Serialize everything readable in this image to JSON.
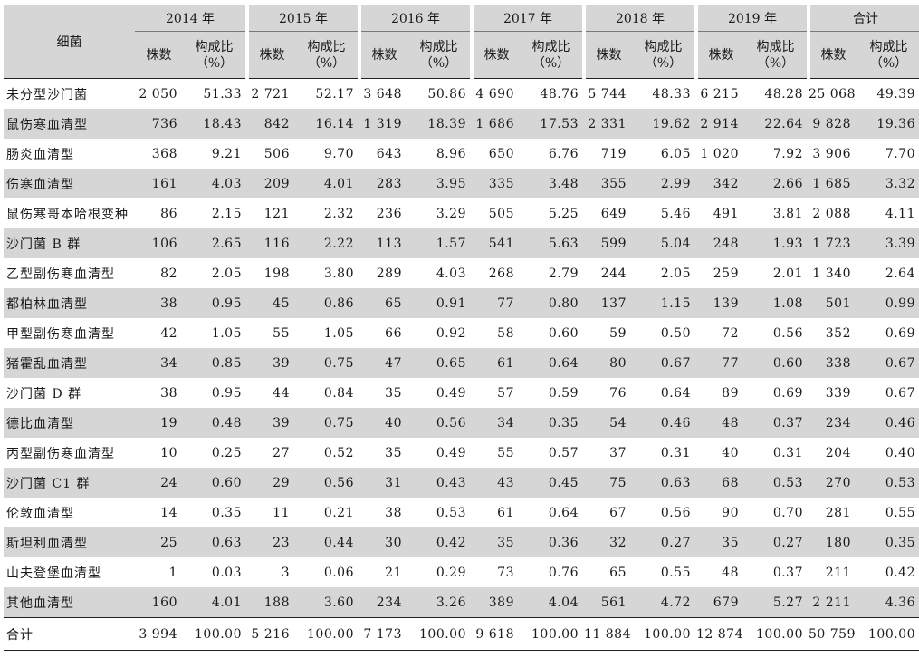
{
  "header": {
    "name_label": "细菌",
    "years": [
      "2014 年",
      "2015 年",
      "2016 年",
      "2017 年",
      "2018 年",
      "2019 年",
      "合计"
    ],
    "count_label": "株数",
    "ratio_label": "构成比",
    "ratio_unit": "（%）"
  },
  "rows": [
    {
      "name": "未分型沙门菌",
      "cells": [
        "2 050",
        "51.33",
        "2 721",
        "52.17",
        "3 648",
        "50.86",
        "4 690",
        "48.76",
        "5 744",
        "48.33",
        "6 215",
        "48.28",
        "25 068",
        "49.39"
      ]
    },
    {
      "name": "鼠伤寒血清型",
      "cells": [
        "736",
        "18.43",
        "842",
        "16.14",
        "1 319",
        "18.39",
        "1 686",
        "17.53",
        "2 331",
        "19.62",
        "2 914",
        "22.64",
        "9 828",
        "19.36"
      ]
    },
    {
      "name": "肠炎血清型",
      "cells": [
        "368",
        "9.21",
        "506",
        "9.70",
        "643",
        "8.96",
        "650",
        "6.76",
        "719",
        "6.05",
        "1 020",
        "7.92",
        "3 906",
        "7.70"
      ]
    },
    {
      "name": "伤寒血清型",
      "cells": [
        "161",
        "4.03",
        "209",
        "4.01",
        "283",
        "3.95",
        "335",
        "3.48",
        "355",
        "2.99",
        "342",
        "2.66",
        "1 685",
        "3.32"
      ]
    },
    {
      "name": "鼠伤寒哥本哈根变种",
      "cells": [
        "86",
        "2.15",
        "121",
        "2.32",
        "236",
        "3.29",
        "505",
        "5.25",
        "649",
        "5.46",
        "491",
        "3.81",
        "2 088",
        "4.11"
      ]
    },
    {
      "name": "沙门菌 B 群",
      "cells": [
        "106",
        "2.65",
        "116",
        "2.22",
        "113",
        "1.57",
        "541",
        "5.63",
        "599",
        "5.04",
        "248",
        "1.93",
        "1 723",
        "3.39"
      ]
    },
    {
      "name": "乙型副伤寒血清型",
      "cells": [
        "82",
        "2.05",
        "198",
        "3.80",
        "289",
        "4.03",
        "268",
        "2.79",
        "244",
        "2.05",
        "259",
        "2.01",
        "1 340",
        "2.64"
      ]
    },
    {
      "name": "都柏林血清型",
      "cells": [
        "38",
        "0.95",
        "45",
        "0.86",
        "65",
        "0.91",
        "77",
        "0.80",
        "137",
        "1.15",
        "139",
        "1.08",
        "501",
        "0.99"
      ]
    },
    {
      "name": "甲型副伤寒血清型",
      "cells": [
        "42",
        "1.05",
        "55",
        "1.05",
        "66",
        "0.92",
        "58",
        "0.60",
        "59",
        "0.50",
        "72",
        "0.56",
        "352",
        "0.69"
      ]
    },
    {
      "name": "猪霍乱血清型",
      "cells": [
        "34",
        "0.85",
        "39",
        "0.75",
        "47",
        "0.65",
        "61",
        "0.64",
        "80",
        "0.67",
        "77",
        "0.60",
        "338",
        "0.67"
      ]
    },
    {
      "name": "沙门菌 D 群",
      "cells": [
        "38",
        "0.95",
        "44",
        "0.84",
        "35",
        "0.49",
        "57",
        "0.59",
        "76",
        "0.64",
        "89",
        "0.69",
        "339",
        "0.67"
      ]
    },
    {
      "name": "德比血清型",
      "cells": [
        "19",
        "0.48",
        "39",
        "0.75",
        "40",
        "0.56",
        "34",
        "0.35",
        "54",
        "0.46",
        "48",
        "0.37",
        "234",
        "0.46"
      ]
    },
    {
      "name": "丙型副伤寒血清型",
      "cells": [
        "10",
        "0.25",
        "27",
        "0.52",
        "35",
        "0.49",
        "55",
        "0.57",
        "37",
        "0.31",
        "40",
        "0.31",
        "204",
        "0.40"
      ]
    },
    {
      "name": "沙门菌 C1 群",
      "cells": [
        "24",
        "0.60",
        "29",
        "0.56",
        "31",
        "0.43",
        "43",
        "0.45",
        "75",
        "0.63",
        "68",
        "0.53",
        "270",
        "0.53"
      ]
    },
    {
      "name": "伦敦血清型",
      "cells": [
        "14",
        "0.35",
        "11",
        "0.21",
        "38",
        "0.53",
        "61",
        "0.64",
        "67",
        "0.56",
        "90",
        "0.70",
        "281",
        "0.55"
      ]
    },
    {
      "name": "斯坦利血清型",
      "cells": [
        "25",
        "0.63",
        "23",
        "0.44",
        "30",
        "0.42",
        "35",
        "0.36",
        "32",
        "0.27",
        "35",
        "0.27",
        "180",
        "0.35"
      ]
    },
    {
      "name": "山夫登堡血清型",
      "cells": [
        "1",
        "0.03",
        "3",
        "0.06",
        "21",
        "0.29",
        "73",
        "0.76",
        "65",
        "0.55",
        "48",
        "0.37",
        "211",
        "0.42"
      ]
    },
    {
      "name": "其他血清型",
      "cells": [
        "160",
        "4.01",
        "188",
        "3.60",
        "234",
        "3.26",
        "389",
        "4.04",
        "561",
        "4.72",
        "679",
        "5.27",
        "2 211",
        "4.36"
      ]
    }
  ],
  "total": {
    "name": "合计",
    "cells": [
      "3 994",
      "100.00",
      "5 216",
      "100.00",
      "7 173",
      "100.00",
      "9 618",
      "100.00",
      "11 884",
      "100.00",
      "12 874",
      "100.00",
      "50 759",
      "100.00"
    ]
  }
}
